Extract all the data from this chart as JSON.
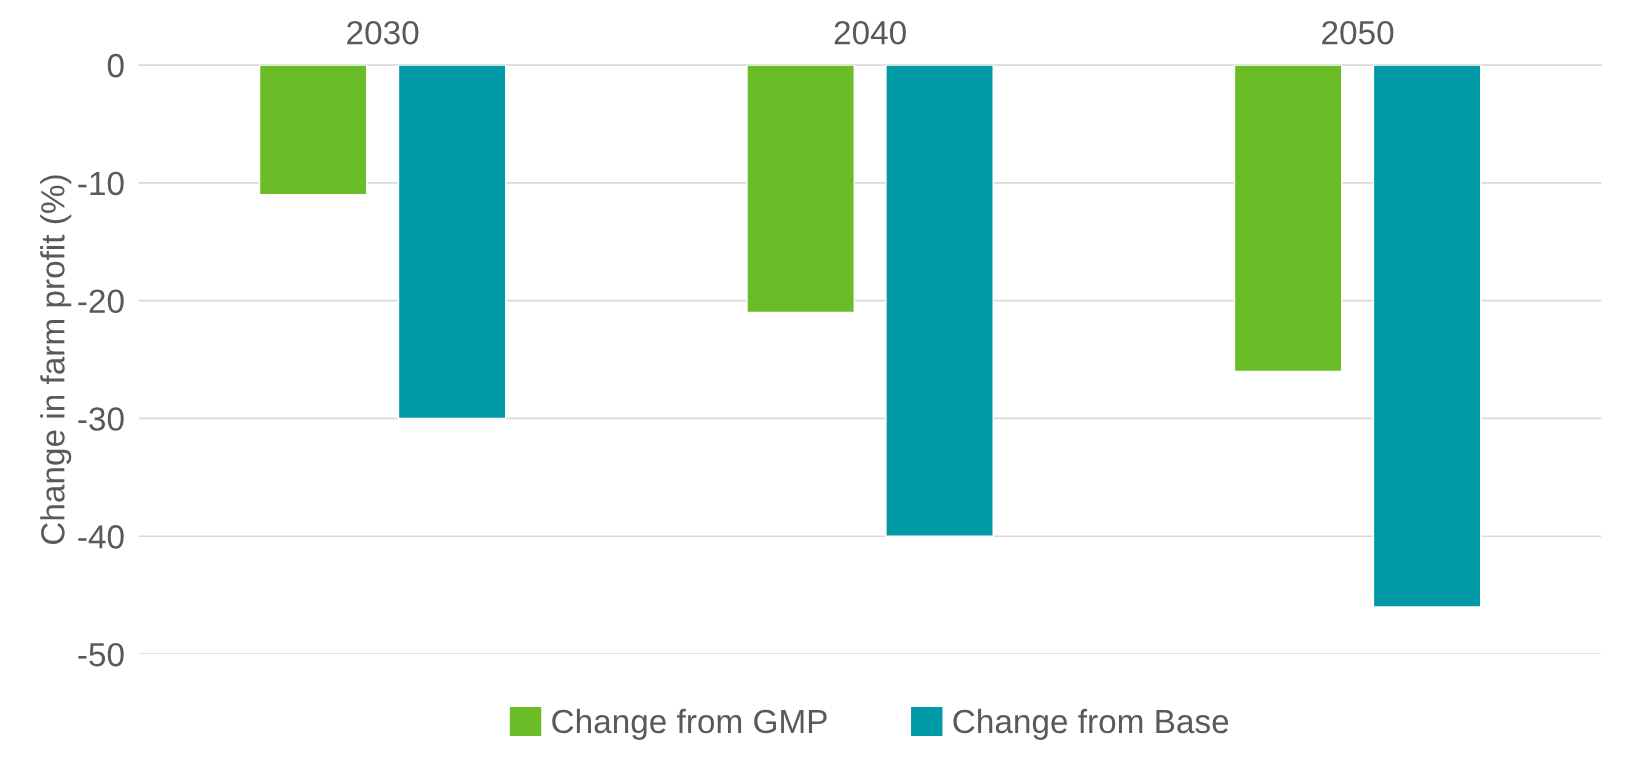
{
  "chart_data": {
    "type": "bar",
    "ylabel": "Change in farm profit (%)",
    "categories": [
      "2030",
      "2040",
      "2050"
    ],
    "series": [
      {
        "name": "Change from GMP",
        "color": "#6abd27",
        "values": [
          -11,
          -21,
          -26
        ]
      },
      {
        "name": "Change from Base",
        "color": "#0099a6",
        "values": [
          -30,
          -40,
          -46
        ]
      }
    ],
    "ylim": [
      -50,
      0
    ],
    "yticks": [
      -50,
      -40,
      -30,
      -20,
      -10,
      0
    ],
    "grid": "y",
    "legend": "bottom"
  }
}
